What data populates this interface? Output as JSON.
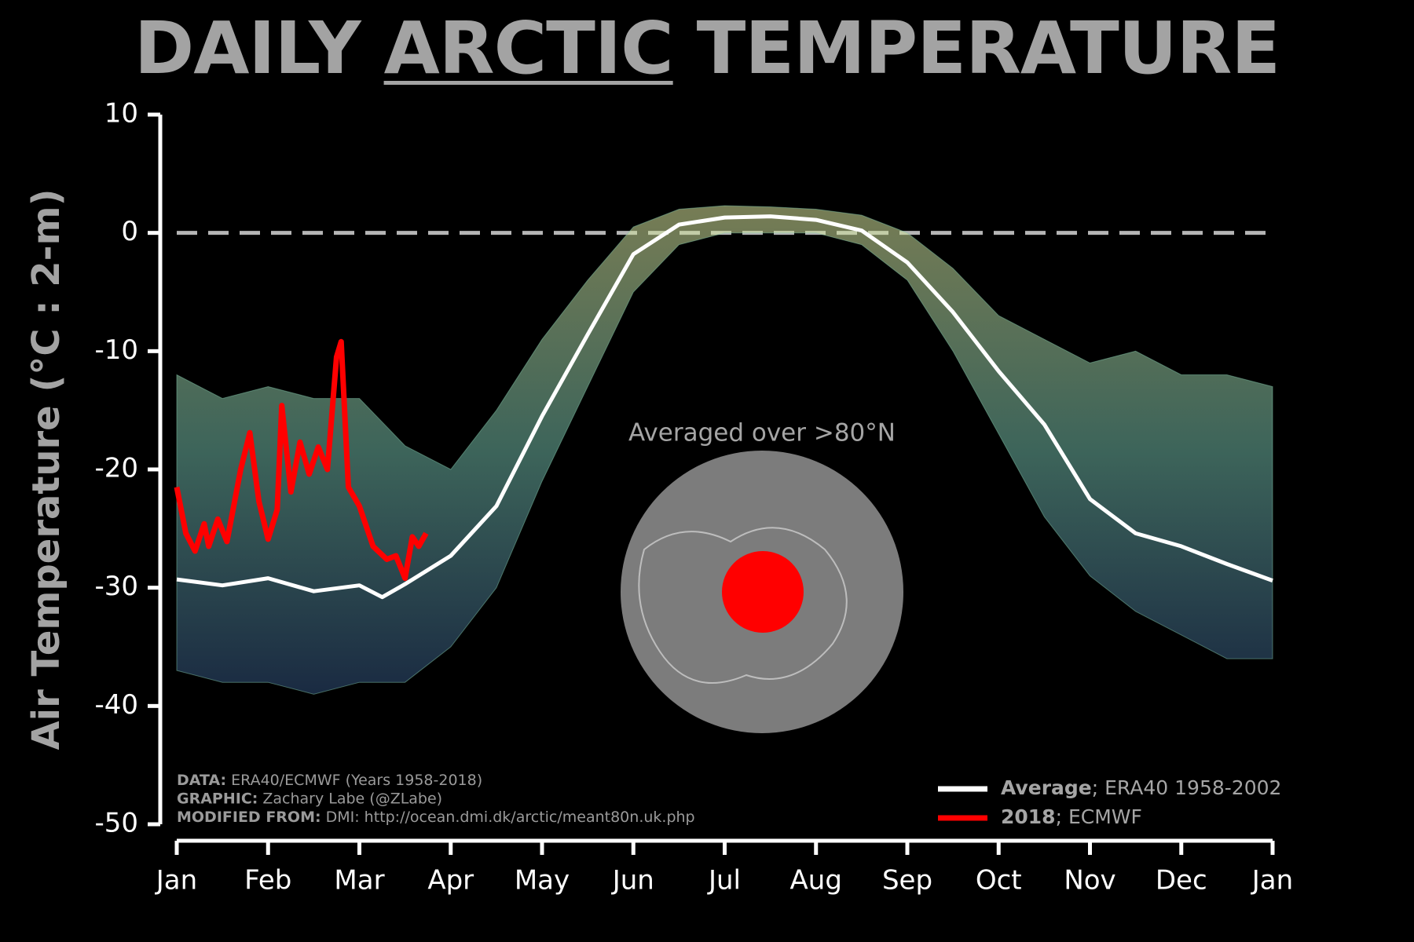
{
  "chart_data": {
    "type": "line",
    "title": {
      "before": "DAILY",
      "emphasis": "ARCTIC",
      "after": "TEMPERATURE"
    },
    "y_label": "Air Temperature (°C : 2-m)",
    "annotation": "Averaged over >80°N",
    "xlim": [
      0,
      12
    ],
    "xticks": [
      {
        "value": 0,
        "label": "Jan"
      },
      {
        "value": 1,
        "label": "Feb"
      },
      {
        "value": 2,
        "label": "Mar"
      },
      {
        "value": 3,
        "label": "Apr"
      },
      {
        "value": 4,
        "label": "May"
      },
      {
        "value": 5,
        "label": "Jun"
      },
      {
        "value": 6,
        "label": "Jul"
      },
      {
        "value": 7,
        "label": "Aug"
      },
      {
        "value": 8,
        "label": "Sep"
      },
      {
        "value": 9,
        "label": "Oct"
      },
      {
        "value": 10,
        "label": "Nov"
      },
      {
        "value": 11,
        "label": "Dec"
      },
      {
        "value": 12,
        "label": "Jan"
      }
    ],
    "ylim": [
      -50,
      10
    ],
    "yticks": [
      -50,
      -40,
      -30,
      -20,
      -10,
      0,
      10
    ],
    "reference_line": 0,
    "x": [
      0,
      0.5,
      1,
      1.5,
      2,
      2.25,
      2.5,
      3,
      3.5,
      4,
      4.5,
      5,
      5.5,
      6,
      6.5,
      7,
      7.5,
      8,
      8.5,
      9,
      9.5,
      10,
      10.5,
      11,
      11.5,
      12
    ],
    "spread": {
      "color": "#7fc4a8",
      "low": [
        -37,
        -38,
        -38,
        -39,
        -38,
        -38,
        -38,
        -35,
        -30,
        -21,
        -13,
        -5,
        -1,
        0,
        0,
        0,
        -1,
        -4,
        -10,
        -17,
        -24,
        -29,
        -32,
        -34,
        -36,
        -36
      ],
      "high": [
        -12,
        -14,
        -13,
        -14,
        -14,
        -16,
        -18,
        -20,
        -15,
        -9,
        -4,
        0.5,
        2,
        2.3,
        2.2,
        2,
        1.5,
        0,
        -3,
        -7,
        -9,
        -11,
        -10,
        -12,
        -12,
        -13
      ]
    },
    "series": [
      {
        "name": "Average",
        "detail": "; ERA40 1958-2002",
        "color": "#ffffff",
        "values": [
          -29.3,
          -29.8,
          -29.2,
          -30.3,
          -29.8,
          -30.8,
          -29.7,
          -27.3,
          -23.1,
          -15.5,
          -8.6,
          -1.8,
          0.7,
          1.3,
          1.4,
          1.1,
          0.2,
          -2.5,
          -6.7,
          -11.7,
          -16.2,
          -22.5,
          -25.4,
          -26.5,
          -28.0,
          -29.4
        ]
      },
      {
        "name": "2018",
        "detail": "; ECMWF",
        "color": "#ff0000",
        "x": [
          0,
          0.1,
          0.2,
          0.3,
          0.35,
          0.45,
          0.55,
          0.7,
          0.8,
          0.9,
          1.0,
          1.1,
          1.15,
          1.25,
          1.35,
          1.45,
          1.55,
          1.65,
          1.75,
          1.8,
          1.88,
          2.0,
          2.15,
          2.3,
          2.4,
          2.5,
          2.58,
          2.65,
          2.73
        ],
        "values": [
          -21.5,
          -25.4,
          -26.9,
          -24.6,
          -26.5,
          -24.2,
          -26.1,
          -20.0,
          -16.9,
          -22.7,
          -25.9,
          -23.4,
          -14.6,
          -21.9,
          -17.7,
          -20.4,
          -18.1,
          -20.0,
          -10.5,
          -9.2,
          -21.5,
          -23.1,
          -26.5,
          -27.6,
          -27.3,
          -29.2,
          -25.7,
          -26.5,
          -25.4
        ]
      }
    ],
    "credits": [
      {
        "label": "DATA:",
        "text": "ERA40/ECMWF (Years 1958-2018)"
      },
      {
        "label": "GRAPHIC:",
        "text": "Zachary Labe (@ZLabe)"
      },
      {
        "label": "MODIFIED FROM:",
        "text": "DMI: http://ocean.dmi.dk/arctic/meant80n.uk.php"
      }
    ]
  }
}
